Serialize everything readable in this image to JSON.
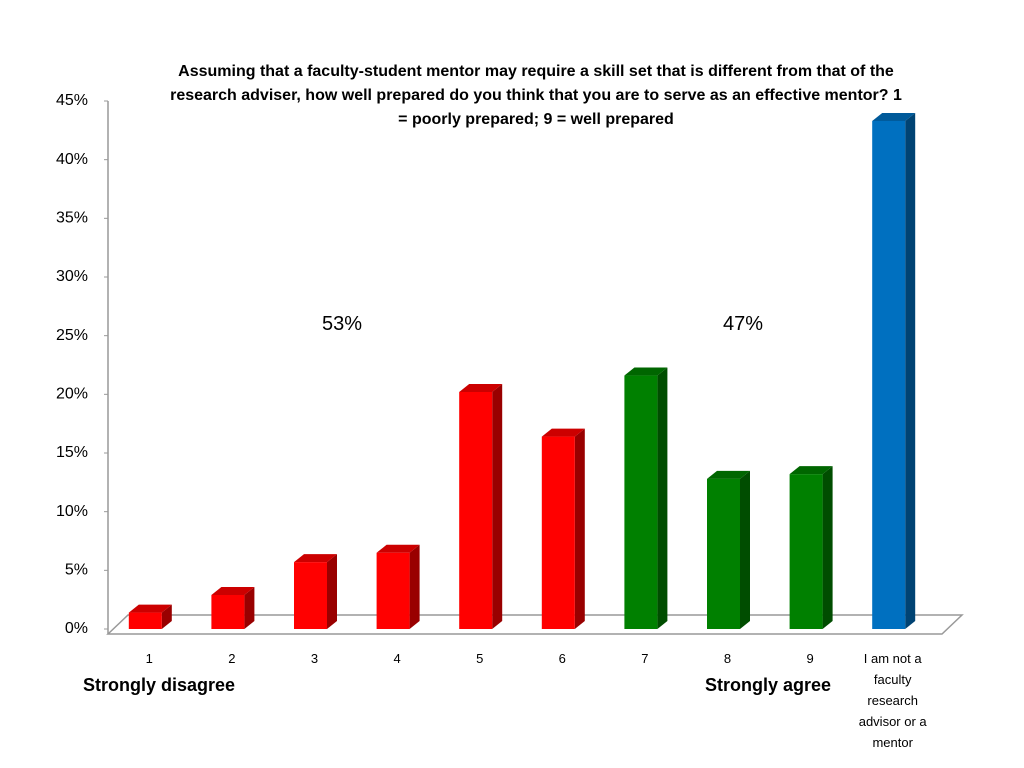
{
  "chart_data": {
    "type": "bar3d",
    "title": "Assuming that a faculty-student mentor may require a skill set that is different from that of the research adviser, how well prepared do you think that you are to serve as an effective mentor? 1 = poorly prepared; 9 = well prepared",
    "categories": [
      "1",
      "2",
      "3",
      "4",
      "5",
      "6",
      "7",
      "8",
      "9",
      "I am not a faculty research advisor or a mentor"
    ],
    "values": [
      1.4,
      2.9,
      5.7,
      6.5,
      20.2,
      16.4,
      21.6,
      12.8,
      13.2,
      43.3
    ],
    "colors": [
      "#ff0000",
      "#ff0000",
      "#ff0000",
      "#ff0000",
      "#ff0000",
      "#ff0000",
      "#008000",
      "#008000",
      "#008000",
      "#0070c0"
    ],
    "ylim": [
      0,
      45
    ],
    "yticks": [
      {
        "value": 0,
        "label": "0%"
      },
      {
        "value": 5,
        "label": "5%"
      },
      {
        "value": 10,
        "label": "10%"
      },
      {
        "value": 15,
        "label": "15%"
      },
      {
        "value": 20,
        "label": "20%"
      },
      {
        "value": 25,
        "label": "25%"
      },
      {
        "value": 30,
        "label": "30%"
      },
      {
        "value": 35,
        "label": "35%"
      },
      {
        "value": 40,
        "label": "40%"
      },
      {
        "value": 45,
        "label": "45%"
      }
    ],
    "grid": false,
    "annotations": [
      "53%",
      "47%",
      "Strongly disagree",
      "Strongly agree"
    ]
  }
}
